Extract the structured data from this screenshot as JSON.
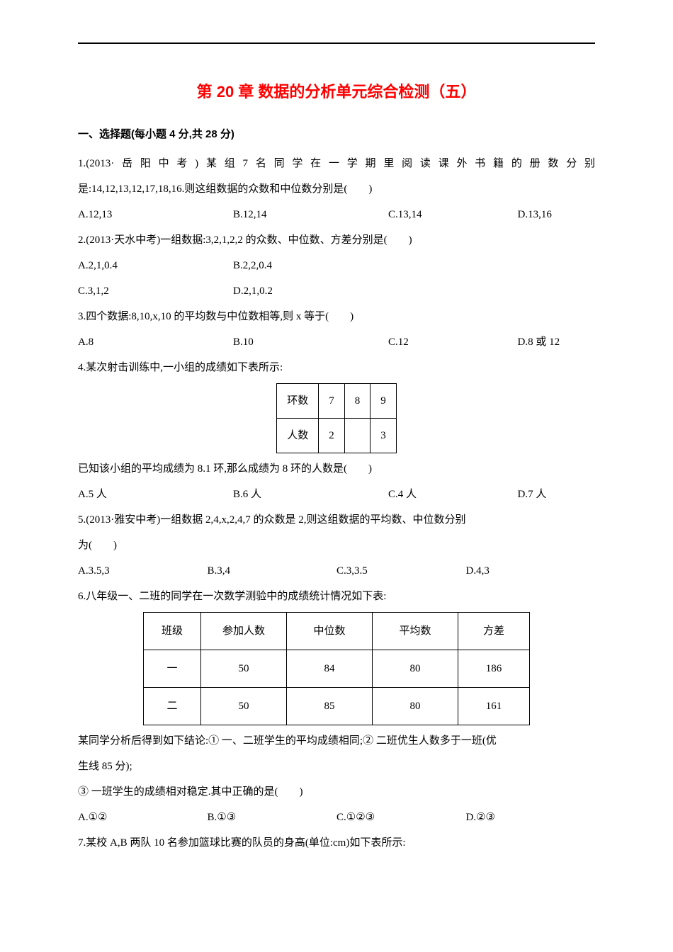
{
  "title": "第 20 章 数据的分析单元综合检测（五）",
  "section1_heading": "一、选择题(每小题 4 分,共 28 分)",
  "q1": {
    "stem_line1": "1.(2013·岳阳中考)某组7名同学在一学期里阅读课外书籍的册数分别",
    "stem_line2": "是:14,12,13,12,17,18,16.则这组数据的众数和中位数分别是(　　)",
    "a": "A.12,13",
    "b": "B.12,14",
    "c": "C.13,14",
    "d": "D.13,16"
  },
  "q2": {
    "stem": "2.(2013·天水中考)一组数据:3,2,1,2,2 的众数、中位数、方差分别是(　　)",
    "a": "A.2,1,0.4",
    "b": "B.2,2,0.4",
    "c": "C.3,1,2",
    "d": "D.2,1,0.2"
  },
  "q3": {
    "stem": "3.四个数据:8,10,x,10 的平均数与中位数相等,则 x 等于(　　)",
    "a": "A.8",
    "b": "B.10",
    "c": "C.12",
    "d": "D.8 或 12"
  },
  "q4": {
    "stem1": "4.某次射击训练中,一小组的成绩如下表所示:",
    "table": {
      "header": [
        "环数",
        "7",
        "8",
        "9"
      ],
      "row": [
        "人数",
        "2",
        "",
        "3"
      ]
    },
    "stem2": "已知该小组的平均成绩为 8.1 环,那么成绩为 8 环的人数是(　　)",
    "a": "A.5 人",
    "b": "B.6 人",
    "c": "C.4 人",
    "d": "D.7 人"
  },
  "q5": {
    "stem_line1": "5.(2013·雅安中考)一组数据 2,4,x,2,4,7 的众数是 2,则这组数据的平均数、中位数分别",
    "stem_line2": "为(　　)",
    "a": "A.3.5,3",
    "b": "B.3,4",
    "c": "C.3,3.5",
    "d": "D.4,3"
  },
  "q6": {
    "stem1": "6.八年级一、二班的同学在一次数学测验中的成绩统计情况如下表:",
    "table": {
      "header": [
        "班级",
        "参加人数",
        "中位数",
        "平均数",
        "方差"
      ],
      "rows": [
        [
          "一",
          "50",
          "84",
          "80",
          "186"
        ],
        [
          "二",
          "50",
          "85",
          "80",
          "161"
        ]
      ]
    },
    "stem2": "某同学分析后得到如下结论:① 一、二班学生的平均成绩相同;② 二班优生人数多于一班(优",
    "stem3": "生线 85 分);",
    "stem4": "③ 一班学生的成绩相对稳定.其中正确的是(　　)",
    "a": "A.①②",
    "b": "B.①③",
    "c": "C.①②③",
    "d": "D.②③"
  },
  "q7": {
    "stem": "7.某校 A,B 两队 10 名参加篮球比赛的队员的身高(单位:cm)如下表所示:"
  }
}
